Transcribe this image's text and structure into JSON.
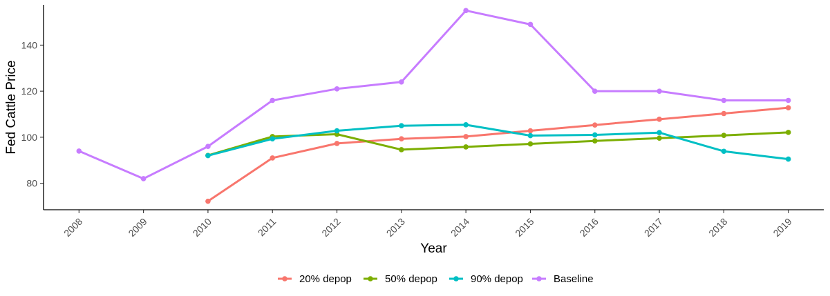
{
  "chart_data": {
    "type": "line",
    "xlabel": "Year",
    "ylabel": "Fed Cattle Price",
    "x": [
      2008,
      2009,
      2010,
      2011,
      2012,
      2013,
      2014,
      2015,
      2016,
      2017,
      2018,
      2019
    ],
    "ylim": [
      68.5,
      157.5
    ],
    "y_ticks": [
      80,
      100,
      120,
      140
    ],
    "grid": false,
    "legend_position": "bottom",
    "series": [
      {
        "name": "20% depop",
        "color": "#F8766D",
        "values": [
          null,
          null,
          72.2,
          91.0,
          97.3,
          99.3,
          100.3,
          102.8,
          105.3,
          107.8,
          110.3,
          112.8
        ]
      },
      {
        "name": "50% depop",
        "color": "#7CAE00",
        "values": [
          null,
          null,
          92.1,
          100.3,
          101.3,
          94.6,
          95.8,
          97.1,
          98.4,
          99.6,
          100.8,
          102.1
        ]
      },
      {
        "name": "90% depop",
        "color": "#00BFC4",
        "values": [
          null,
          null,
          92.0,
          99.3,
          102.8,
          105.0,
          105.4,
          100.7,
          101.0,
          102.0,
          93.9,
          90.5
        ]
      },
      {
        "name": "Baseline",
        "color": "#C77CFF",
        "values": [
          94.0,
          82.0,
          96.0,
          116.0,
          121.0,
          124.0,
          155.0,
          149.0,
          120.0,
          120.0,
          116.0,
          116.0
        ]
      }
    ]
  }
}
